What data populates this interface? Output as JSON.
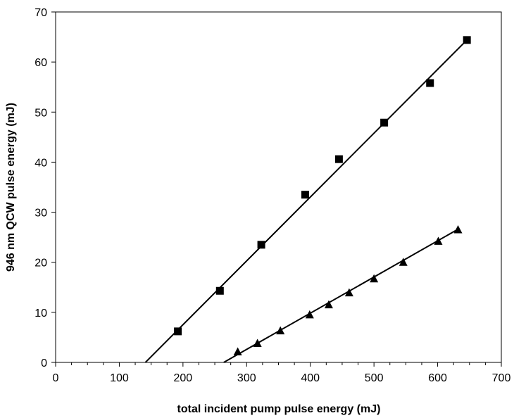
{
  "chart_data": {
    "type": "scatter",
    "title": "",
    "xlabel": "total incident pump pulse energy (mJ)",
    "ylabel": "946 nm QCW pulse energy (mJ)",
    "xlim": [
      0,
      700
    ],
    "ylim": [
      0,
      70
    ],
    "xticks": [
      0,
      100,
      200,
      300,
      400,
      500,
      600,
      700
    ],
    "yticks": [
      0,
      10,
      20,
      30,
      40,
      50,
      60,
      70
    ],
    "grid": false,
    "legend": "none",
    "series": [
      {
        "marker": "square",
        "color": "#000000",
        "points": [
          {
            "x": 192,
            "y": 6.2
          },
          {
            "x": 258,
            "y": 14.3
          },
          {
            "x": 323,
            "y": 23.5
          },
          {
            "x": 392,
            "y": 33.5
          },
          {
            "x": 445,
            "y": 40.6
          },
          {
            "x": 516,
            "y": 47.9
          },
          {
            "x": 588,
            "y": 55.8
          },
          {
            "x": 646,
            "y": 64.4
          }
        ],
        "fit_line": {
          "x1": 141,
          "y1": 0,
          "x2": 646,
          "y2": 64.4
        }
      },
      {
        "marker": "triangle",
        "color": "#000000",
        "points": [
          {
            "x": 286,
            "y": 2.1
          },
          {
            "x": 317,
            "y": 3.8
          },
          {
            "x": 353,
            "y": 6.3
          },
          {
            "x": 399,
            "y": 9.5
          },
          {
            "x": 429,
            "y": 11.5
          },
          {
            "x": 461,
            "y": 13.9
          },
          {
            "x": 500,
            "y": 16.7
          },
          {
            "x": 546,
            "y": 20.0
          },
          {
            "x": 601,
            "y": 24.2
          },
          {
            "x": 632,
            "y": 26.5
          }
        ],
        "fit_line": {
          "x1": 264,
          "y1": 0,
          "x2": 632,
          "y2": 26.6
        }
      }
    ]
  }
}
